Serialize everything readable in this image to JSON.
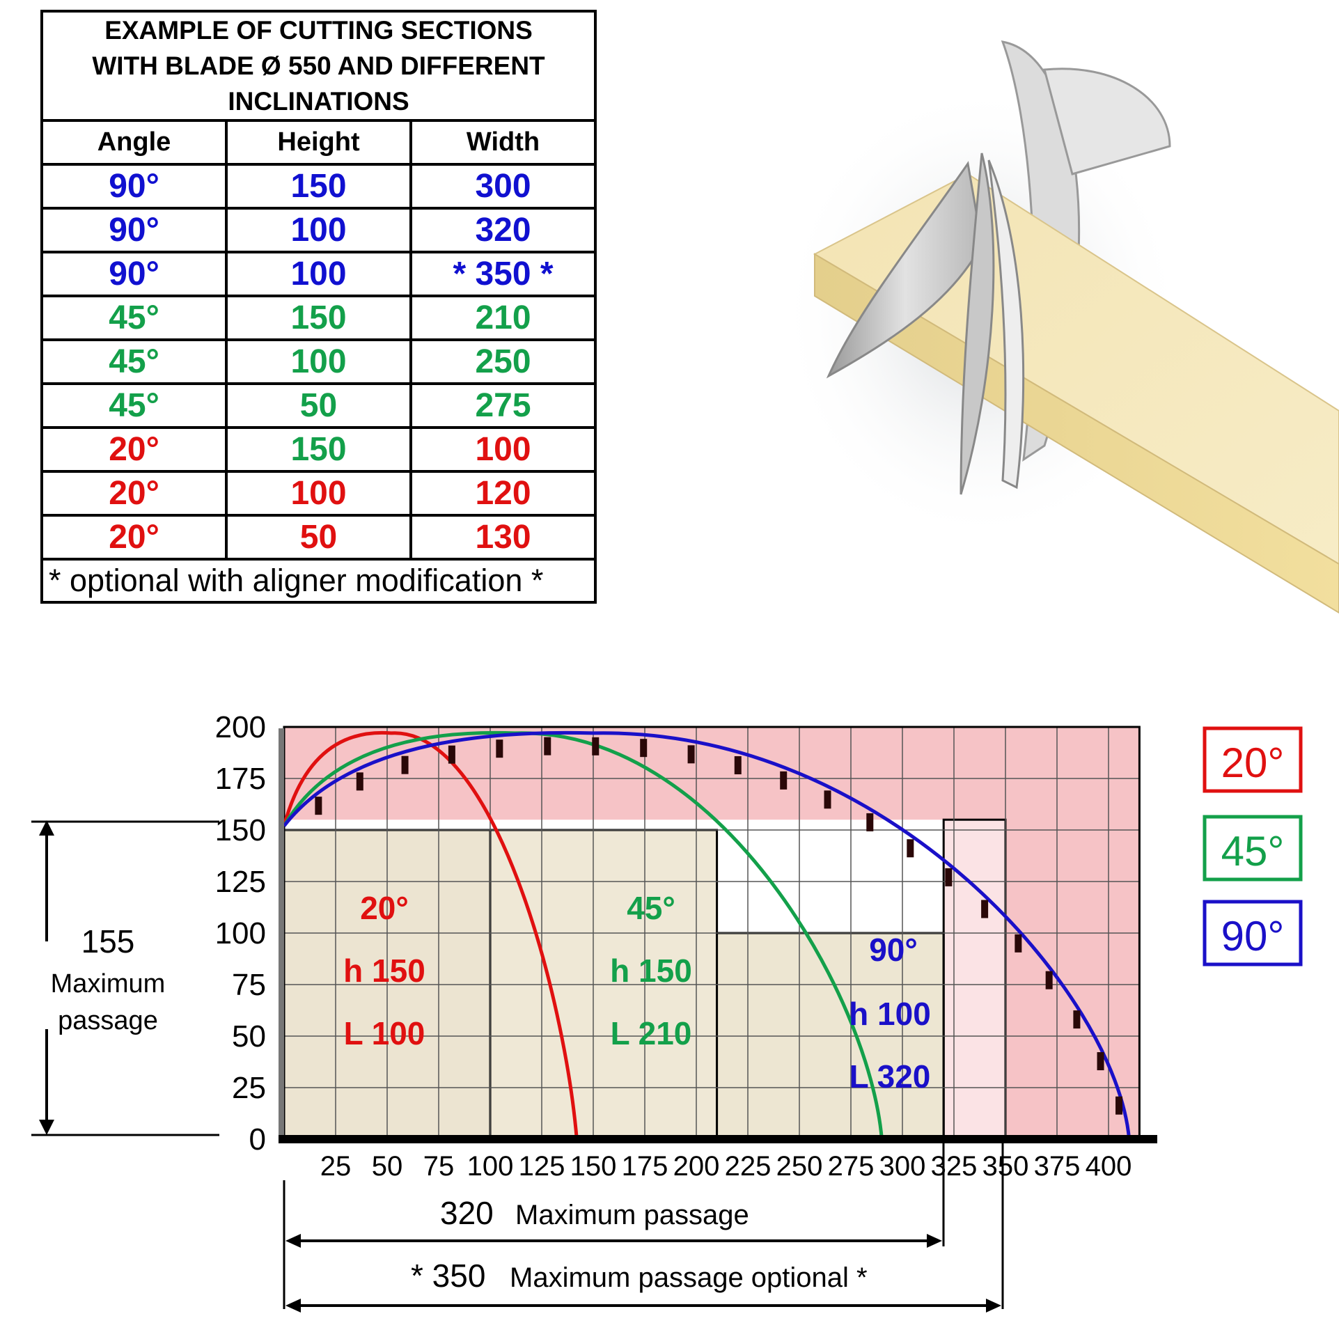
{
  "table": {
    "title_lines": [
      "EXAMPLE OF CUTTING SECTIONS",
      "WITH BLADE Ø 550 AND DIFFERENT",
      "INCLINATIONS"
    ],
    "headers": [
      "Angle",
      "Height",
      "Width"
    ],
    "rows": [
      {
        "angle": "90°",
        "height": "150",
        "width": "300",
        "colors": [
          "#1010d0",
          "#1010d0",
          "#1010d0"
        ]
      },
      {
        "angle": "90°",
        "height": "100",
        "width": "320",
        "colors": [
          "#1010d0",
          "#1010d0",
          "#1010d0"
        ]
      },
      {
        "angle": "90°",
        "height": "100",
        "width": "* 350 *",
        "colors": [
          "#1010d0",
          "#1010d0",
          "#1010d0"
        ]
      },
      {
        "angle": "45°",
        "height": "150",
        "width": "210",
        "colors": [
          "#13a04a",
          "#13a04a",
          "#13a04a"
        ]
      },
      {
        "angle": "45°",
        "height": "100",
        "width": "250",
        "colors": [
          "#13a04a",
          "#13a04a",
          "#13a04a"
        ]
      },
      {
        "angle": "45°",
        "height": "50",
        "width": "275",
        "colors": [
          "#13a04a",
          "#13a04a",
          "#13a04a"
        ]
      },
      {
        "angle": "20°",
        "height": "150",
        "width": "100",
        "colors": [
          "#e01010",
          "#13a04a",
          "#e01010"
        ]
      },
      {
        "angle": "20°",
        "height": "100",
        "width": "120",
        "colors": [
          "#e01010",
          "#e01010",
          "#e01010"
        ]
      },
      {
        "angle": "20°",
        "height": "50",
        "width": "130",
        "colors": [
          "#e01010",
          "#e01010",
          "#e01010"
        ]
      }
    ],
    "footnote": "* optional with aligner modification *"
  },
  "colors": {
    "red": "#e01010",
    "green": "#13a04a",
    "blue": "#1a10c8",
    "pink_bg": "#f6c3c6",
    "light_pink": "#fbe3e5",
    "grid": "#555555"
  },
  "diagram": {
    "y_ticks": [
      "0",
      "25",
      "50",
      "75",
      "100",
      "125",
      "150",
      "175",
      "200"
    ],
    "x_ticks": [
      "25",
      "50",
      "75",
      "100",
      "125",
      "150",
      "175",
      "200",
      "225",
      "250",
      "275",
      "300",
      "325",
      "350",
      "375",
      "400"
    ],
    "legend": [
      "20°",
      "45°",
      "90°"
    ],
    "left_dim": {
      "value": "155",
      "label_line1": "Maximum",
      "label_line2": "passage"
    },
    "sections": [
      {
        "angle": "20°",
        "h": "h 150",
        "l": "L 100"
      },
      {
        "angle": "45°",
        "h": "h 150",
        "l": "L 210"
      },
      {
        "angle": "90°",
        "h": "h 100",
        "l": "L 320"
      }
    ],
    "dim_320": {
      "value": "320",
      "label": "Maximum passage"
    },
    "dim_350": {
      "value": "* 350",
      "label": "Maximum passage optional *"
    }
  }
}
